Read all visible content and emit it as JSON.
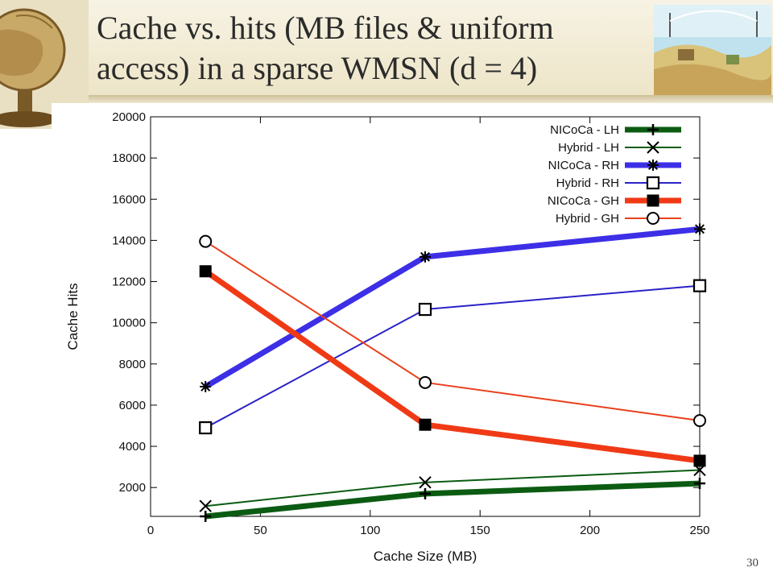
{
  "slide": {
    "title_line1": "Cache vs. hits (MB files & uniform",
    "title_line2": "access) in a sparse WMSN (d = 4)",
    "page_number": "30"
  },
  "chart_data": {
    "type": "line",
    "xlabel": "Cache Size (MB)",
    "ylabel": "Cache Hits",
    "xlim": [
      0,
      250
    ],
    "ylim": [
      600,
      20000
    ],
    "xticks": [
      0,
      50,
      100,
      150,
      200,
      250
    ],
    "yticks": [
      2000,
      4000,
      6000,
      8000,
      10000,
      12000,
      14000,
      16000,
      18000,
      20000
    ],
    "grid": false,
    "legend_position": "top-right",
    "x": [
      25,
      125,
      250
    ],
    "series": [
      {
        "name": "NICoCa - LH",
        "values": [
          600,
          1700,
          2200
        ],
        "color": "#0b5c12",
        "marker": "plus",
        "line": "thick"
      },
      {
        "name": "Hybrid - LH",
        "values": [
          1100,
          2250,
          2850
        ],
        "color": "#0b5c12",
        "marker": "x",
        "line": "thin"
      },
      {
        "name": "NICoCa - RH",
        "values": [
          6900,
          13200,
          14550
        ],
        "color": "#3d2fe6",
        "marker": "star",
        "line": "thick"
      },
      {
        "name": "Hybrid - RH",
        "values": [
          4900,
          10650,
          11800
        ],
        "color": "#2b22c8",
        "marker": "square-open",
        "line": "thin"
      },
      {
        "name": "NICoCa - GH",
        "values": [
          12500,
          5050,
          3300
        ],
        "color": "#f03a16",
        "marker": "square-filled",
        "line": "thick"
      },
      {
        "name": "Hybrid - GH",
        "values": [
          13950,
          7100,
          5250
        ],
        "color": "#e8401c",
        "marker": "circle-open",
        "line": "thin"
      }
    ]
  }
}
